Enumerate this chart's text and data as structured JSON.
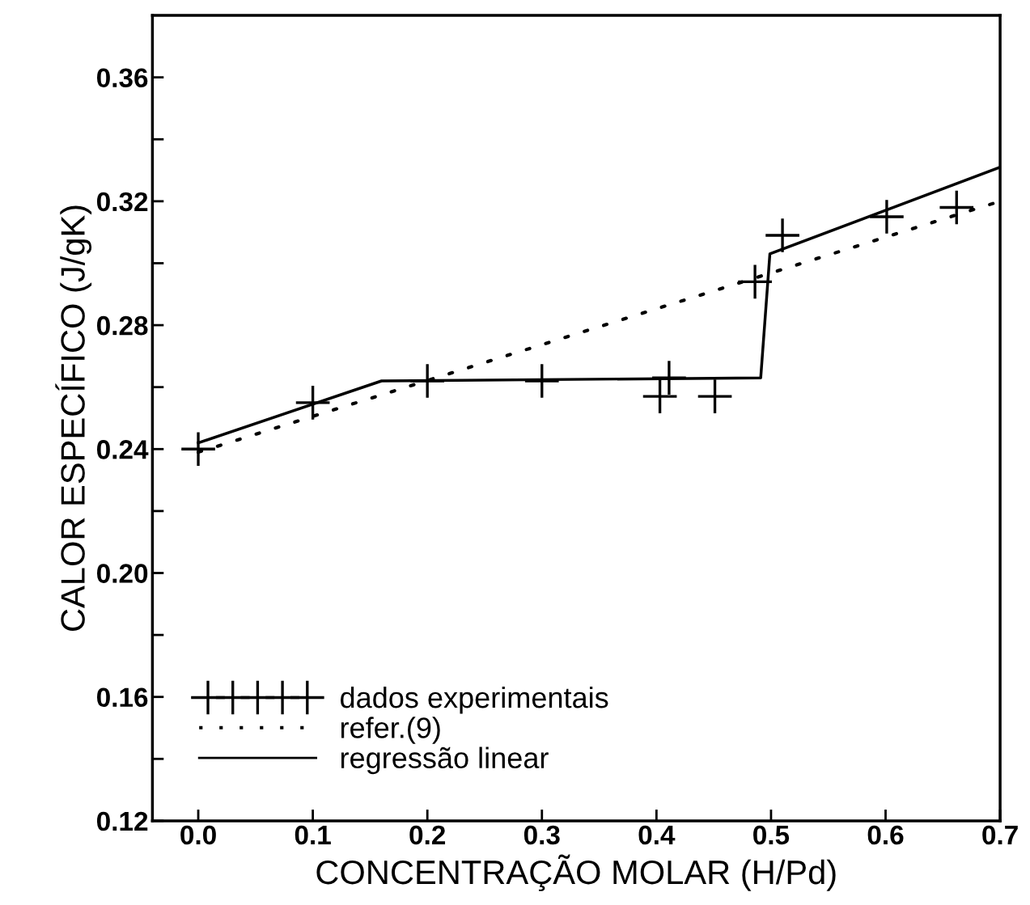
{
  "chart_data": {
    "type": "line",
    "xlabel": "CONCENTRAÇÃO MOLAR (H/Pd)",
    "ylabel": "CALOR ESPECÍFICO (J/gK)",
    "xlim": [
      -0.04,
      0.7
    ],
    "ylim": [
      0.12,
      0.38
    ],
    "xticks": [
      {
        "value": 0.0,
        "label": "0.0"
      },
      0.1,
      0.2,
      0.3,
      0.4,
      0.5,
      0.6,
      0.7
    ],
    "yticks": [
      0.12,
      {
        "value": 0.14,
        "label": null
      },
      {
        "value": 0.16,
        "label": "0.16"
      },
      {
        "value": 0.18,
        "label": null
      },
      {
        "value": 0.2,
        "label": "0.20"
      },
      {
        "value": 0.22,
        "label": null
      },
      0.24,
      {
        "value": 0.26,
        "label": null
      },
      0.28,
      {
        "value": 0.3,
        "label": null
      },
      0.32,
      {
        "value": 0.34,
        "label": null
      },
      0.36
    ],
    "grid": false,
    "legend": "bottom left",
    "series": [
      {
        "name": "dados experimentais",
        "type": "scatter",
        "marker": "cross",
        "color": "#000000",
        "x": [
          0.0,
          0.1,
          0.2,
          0.3,
          0.403,
          0.411,
          0.451,
          0.486,
          0.51,
          0.601,
          0.662
        ],
        "values": [
          0.24,
          0.255,
          0.262,
          0.262,
          0.257,
          0.263,
          0.257,
          0.294,
          0.309,
          0.315,
          0.318
        ]
      },
      {
        "name": "refer.(9)",
        "line_style": "dotted",
        "color": "#000000",
        "x": [
          0.0,
          0.7
        ],
        "values": [
          0.239,
          0.32
        ]
      },
      {
        "name": "regressão linear",
        "line_style": "solid",
        "color": "#000000",
        "x": [
          0.0,
          0.16,
          0.491,
          0.499,
          0.7
        ],
        "values": [
          0.242,
          0.262,
          0.263,
          0.303,
          0.331
        ]
      }
    ]
  }
}
